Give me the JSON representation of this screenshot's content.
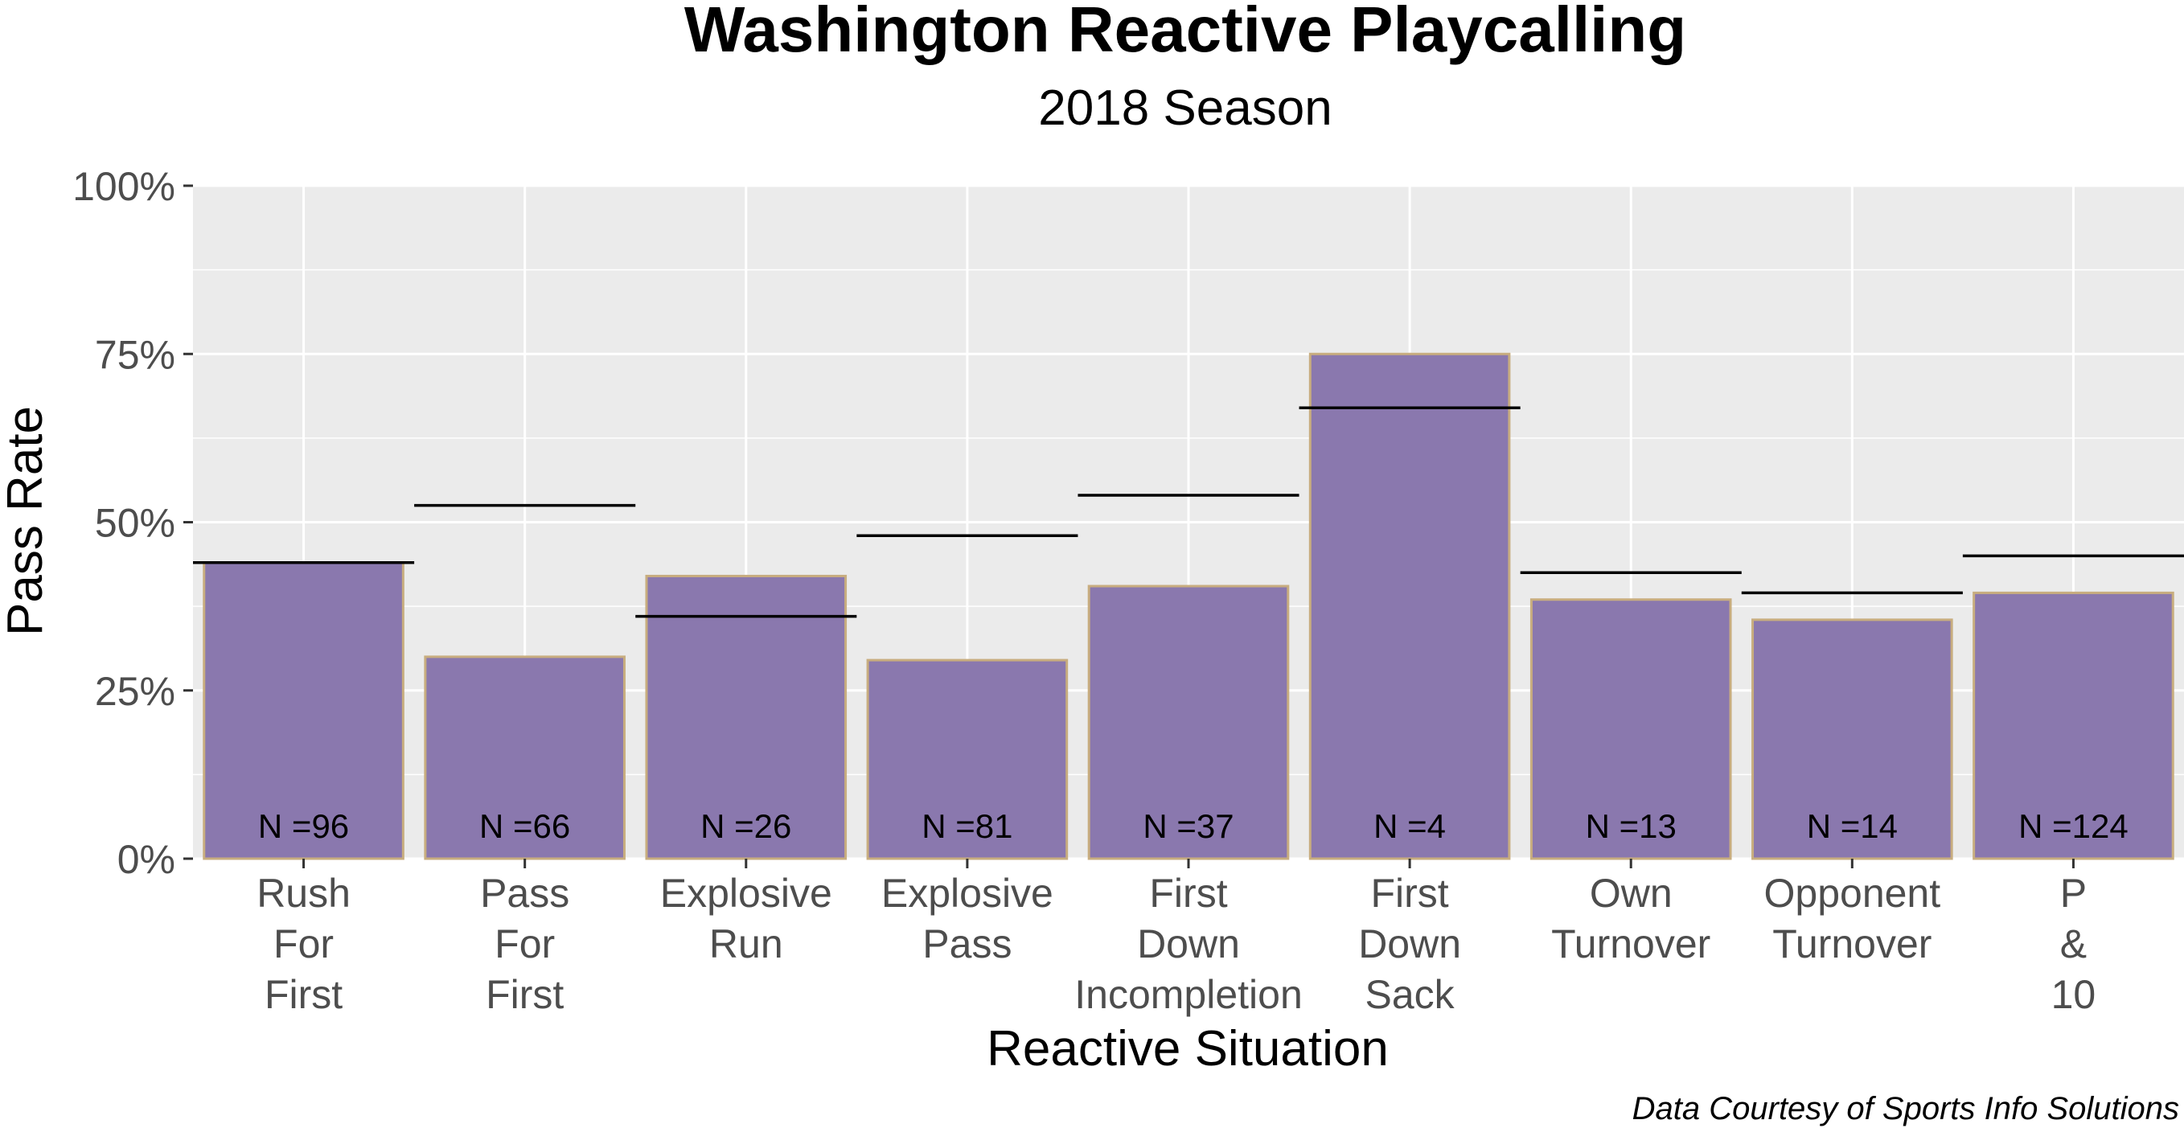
{
  "chart_data": {
    "type": "bar",
    "title": "Washington Reactive Playcalling",
    "subtitle": "2018 Season",
    "xlabel": "Reactive Situation",
    "ylabel": "Pass Rate",
    "caption": "Data Courtesy of Sports Info Solutions",
    "ylim": [
      0,
      1
    ],
    "y_ticks": [
      {
        "value": 0,
        "label": "0%"
      },
      {
        "value": 0.25,
        "label": "25%"
      },
      {
        "value": 0.5,
        "label": "50%"
      },
      {
        "value": 0.75,
        "label": "75%"
      },
      {
        "value": 1,
        "label": "100%"
      }
    ],
    "grid": true,
    "bar_color": "#8a78ae",
    "bar_outline_color": "#c8ad7f",
    "reference_line_color": "#000000",
    "panel_color": "#ebebeb",
    "categories": [
      {
        "lines": [
          "Rush",
          "For",
          "First"
        ],
        "value": 0.44,
        "reference": 0.44,
        "n_label": "N =96"
      },
      {
        "lines": [
          "Pass",
          "For",
          "First"
        ],
        "value": 0.3,
        "reference": 0.525,
        "n_label": "N =66"
      },
      {
        "lines": [
          "Explosive",
          "Run"
        ],
        "value": 0.42,
        "reference": 0.36,
        "n_label": "N =26"
      },
      {
        "lines": [
          "Explosive",
          "Pass"
        ],
        "value": 0.295,
        "reference": 0.48,
        "n_label": "N =81"
      },
      {
        "lines": [
          "First",
          "Down",
          "Incompletion"
        ],
        "value": 0.405,
        "reference": 0.54,
        "n_label": "N =37"
      },
      {
        "lines": [
          "First",
          "Down",
          "Sack"
        ],
        "value": 0.75,
        "reference": 0.67,
        "n_label": "N =4"
      },
      {
        "lines": [
          "Own",
          "Turnover"
        ],
        "value": 0.385,
        "reference": 0.425,
        "n_label": "N =13"
      },
      {
        "lines": [
          "Opponent",
          "Turnover"
        ],
        "value": 0.355,
        "reference": 0.395,
        "n_label": "N =14"
      },
      {
        "lines": [
          "P",
          "&",
          "10"
        ],
        "value": 0.395,
        "reference": 0.45,
        "n_label": "N =124"
      }
    ]
  }
}
